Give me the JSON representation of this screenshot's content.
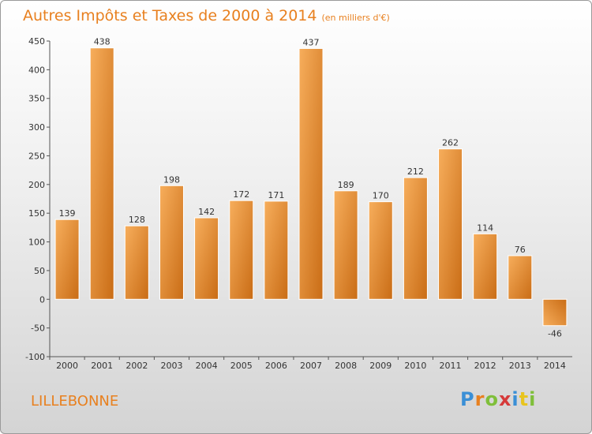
{
  "title": "Autres Impôts et Taxes de 2000 à 2014",
  "title_unit": "(en milliers d'€)",
  "city": "LILLEBONNE",
  "logo_text": "Proxiti",
  "colors": {
    "accent": "#e8801f",
    "bar_light": "#f5a650",
    "bar_dark": "#cc6f18",
    "axis": "#444444"
  },
  "chart_data": {
    "type": "bar",
    "title": "Autres Impôts et Taxes de 2000 à 2014",
    "xlabel": "",
    "ylabel": "",
    "categories": [
      "2000",
      "2001",
      "2002",
      "2003",
      "2004",
      "2005",
      "2006",
      "2007",
      "2008",
      "2009",
      "2010",
      "2011",
      "2012",
      "2013",
      "2014"
    ],
    "values": [
      139,
      438,
      128,
      198,
      142,
      172,
      171,
      437,
      189,
      170,
      212,
      262,
      114,
      76,
      -46
    ],
    "value_labels": [
      "139",
      "438",
      "128",
      "198",
      "142",
      "172",
      "171",
      "437",
      "189",
      "170",
      "212",
      "262",
      "114",
      "76",
      "-46"
    ],
    "ylim": [
      -100,
      450
    ],
    "yticks": [
      -100,
      -50,
      0,
      50,
      100,
      150,
      200,
      250,
      300,
      350,
      400,
      450
    ],
    "ytick_labels": [
      "-100",
      "-50",
      "0",
      "50",
      "100",
      "150",
      "200",
      "250",
      "300",
      "350",
      "400",
      "450"
    ],
    "grid": false,
    "legend": "none"
  }
}
